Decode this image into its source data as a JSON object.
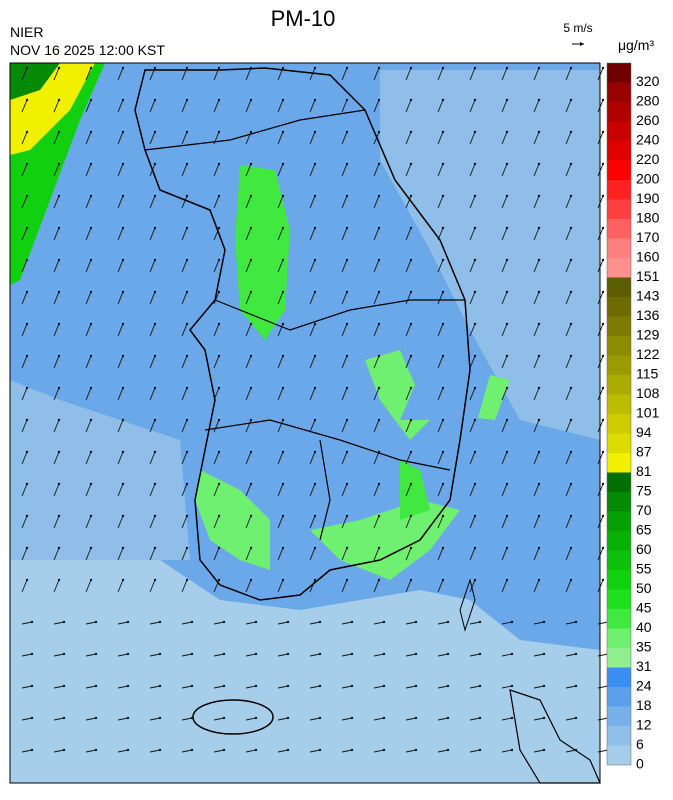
{
  "header": {
    "title": "PM-10",
    "agency": "NIER",
    "datetime": "NOV 16 2025 12:00 KST",
    "wind_scale": "5 m/s"
  },
  "colorbar": {
    "unit": "μg/m³",
    "levels": [
      {
        "value": 0,
        "color": "#a6cdea"
      },
      {
        "value": 6,
        "color": "#8fbfe8"
      },
      {
        "value": 12,
        "color": "#78b0ea"
      },
      {
        "value": 18,
        "color": "#5aa0ea"
      },
      {
        "value": 24,
        "color": "#3a8ef0"
      },
      {
        "value": 31,
        "color": "#90f090"
      },
      {
        "value": 35,
        "color": "#70f070"
      },
      {
        "value": 40,
        "color": "#40e840"
      },
      {
        "value": 45,
        "color": "#1ee01e"
      },
      {
        "value": 50,
        "color": "#10d010"
      },
      {
        "value": 55,
        "color": "#0cc00c"
      },
      {
        "value": 60,
        "color": "#08b008"
      },
      {
        "value": 65,
        "color": "#06a006"
      },
      {
        "value": 70,
        "color": "#048a04"
      },
      {
        "value": 75,
        "color": "#027002"
      },
      {
        "value": 81,
        "color": "#f0f000"
      },
      {
        "value": 87,
        "color": "#dcdc00"
      },
      {
        "value": 94,
        "color": "#cccc00"
      },
      {
        "value": 101,
        "color": "#bcbc00"
      },
      {
        "value": 108,
        "color": "#acac00"
      },
      {
        "value": 115,
        "color": "#9c9c00"
      },
      {
        "value": 122,
        "color": "#8c8c00"
      },
      {
        "value": 129,
        "color": "#7c7c00"
      },
      {
        "value": 136,
        "color": "#6c6c00"
      },
      {
        "value": 143,
        "color": "#5c5c00"
      },
      {
        "value": 151,
        "color": "#ff9090"
      },
      {
        "value": 160,
        "color": "#ff8080"
      },
      {
        "value": 170,
        "color": "#ff6060"
      },
      {
        "value": 180,
        "color": "#ff4040"
      },
      {
        "value": 190,
        "color": "#ff2020"
      },
      {
        "value": 200,
        "color": "#ff0000"
      },
      {
        "value": 220,
        "color": "#e00000"
      },
      {
        "value": 240,
        "color": "#c80000"
      },
      {
        "value": 260,
        "color": "#b00000"
      },
      {
        "value": 280,
        "color": "#980000"
      },
      {
        "value": 320,
        "color": "#700000"
      }
    ]
  }
}
